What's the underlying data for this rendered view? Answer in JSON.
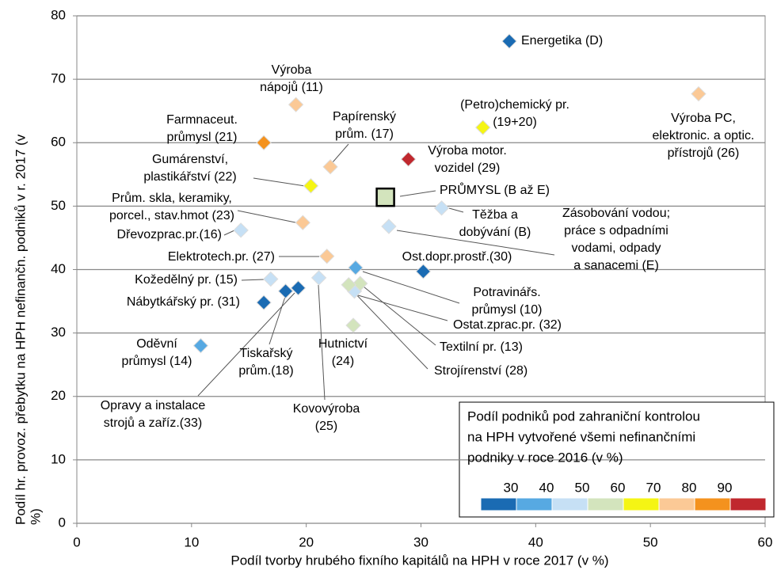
{
  "chart_data": {
    "type": "scatter",
    "x_label": "Podíl tvorby hrubého fixního kapitálů na HPH  v roce 2017 (v %)",
    "y_label": [
      "Podíl hr. provoz. přebytku na HPH nefinančn. podniků v r. 2017 (v",
      "%)"
    ],
    "xlim": [
      0,
      60
    ],
    "xticks": [
      0,
      10,
      20,
      30,
      40,
      50,
      60
    ],
    "ylim": [
      0,
      80
    ],
    "yticks": [
      0,
      10,
      20,
      30,
      40,
      50,
      60,
      70,
      80
    ],
    "grid": true,
    "points": [
      {
        "label": [
          "Energetika (D)"
        ],
        "x": 37.7,
        "y": 76.0,
        "color": "#1a6bb3"
      },
      {
        "label": [
          "Výroba PC,",
          "elektronic. a optic.",
          "přístrojů (26)"
        ],
        "x": 54.2,
        "y": 67.7,
        "color": "#fbc996"
      },
      {
        "label": [
          "(Petro)chemický pr.",
          "(19+20)"
        ],
        "x": 35.4,
        "y": 62.4,
        "color": "#f5f514"
      },
      {
        "label": [
          "Výroba",
          "nápojů (11)"
        ],
        "x": 19.1,
        "y": 66.0,
        "color": "#fbc996"
      },
      {
        "label": [
          "Farmnaceut.",
          "průmysl (21)"
        ],
        "x": 16.3,
        "y": 60.0,
        "color": "#f4921e"
      },
      {
        "label": [
          "Papírenský",
          "prům. (17)"
        ],
        "x": 22.1,
        "y": 56.2,
        "color": "#fbc996"
      },
      {
        "label": [
          "Výroba motor.",
          "vozidel (29)"
        ],
        "x": 28.9,
        "y": 57.4,
        "color": "#c0282e"
      },
      {
        "label": [
          "Gumárenství,",
          "plastikářství (22)"
        ],
        "x": 20.4,
        "y": 53.2,
        "color": "#f5f514"
      },
      {
        "label": [
          "PRŮMYSL (B až E)"
        ],
        "x": 26.9,
        "y": 51.4,
        "color": "#d3e4bd"
      },
      {
        "label": [
          "Těžba a",
          "dobývání (B)"
        ],
        "x": 31.8,
        "y": 49.7,
        "color": "#c6e0f5"
      },
      {
        "label": [
          "Prům. skla, keramiky,",
          "porcel., stav.hmot (23)"
        ],
        "x": 19.7,
        "y": 47.4,
        "color": "#fbc996"
      },
      {
        "label": [
          "Dřevozprac.pr.(16)"
        ],
        "x": 14.3,
        "y": 46.2,
        "color": "#c6e0f5"
      },
      {
        "label": [
          "Zásobování vodou;",
          "práce s odpadními",
          "vodami, odpady",
          "a sanacemi (E)"
        ],
        "x": 27.2,
        "y": 46.8,
        "color": "#c6e0f5"
      },
      {
        "label": [
          "Elektrotech.pr. (27)"
        ],
        "x": 21.8,
        "y": 42.1,
        "color": "#fbc996"
      },
      {
        "label": [
          "Ost.dopr.prostř.(30)"
        ],
        "x": 30.2,
        "y": 39.7,
        "color": "#1a6bb3"
      },
      {
        "label": [
          "Potravinářs.",
          "průmysl (10)"
        ],
        "x": 24.3,
        "y": 40.3,
        "color": "#57a9e2"
      },
      {
        "label": [
          "Kožedělný pr. (15)"
        ],
        "x": 16.9,
        "y": 38.5,
        "color": "#c6e0f5"
      },
      {
        "label": [
          "Kovovýroba",
          "(25)"
        ],
        "x": 21.1,
        "y": 38.7,
        "color": "#c6e0f5"
      },
      {
        "label": [
          "Nábytkářský pr. (31)"
        ],
        "x": 16.3,
        "y": 34.8,
        "color": "#1a6bb3"
      },
      {
        "label": [
          "Tiskařský",
          "prům.(18)"
        ],
        "x": 18.2,
        "y": 36.6,
        "color": "#1a6bb3"
      },
      {
        "label": [
          "Opravy a instalace",
          "strojů a zaříz.(33)"
        ],
        "x": 19.3,
        "y": 37.1,
        "color": "#1a6bb3"
      },
      {
        "label": [
          "Ostat.zprac.pr. (32)"
        ],
        "x": 24.2,
        "y": 36.6,
        "color": "#c6e0f5"
      },
      {
        "label": [
          "Textilní pr. (13)"
        ],
        "x": 24.7,
        "y": 37.8,
        "color": "#d3e4bd"
      },
      {
        "label": [
          "Strojírenství (28)"
        ],
        "x": 23.7,
        "y": 37.6,
        "color": "#d3e4bd"
      },
      {
        "label": [
          "Hutnictví",
          "(24)"
        ],
        "x": 24.1,
        "y": 31.2,
        "color": "#d3e4bd"
      },
      {
        "label": [
          "Oděvní",
          "průmysl (14)"
        ],
        "x": 10.8,
        "y": 28.0,
        "color": "#57a9e2"
      }
    ],
    "legend": {
      "title": [
        "Podíl podniků pod zahraniční kontrolou",
        "na HPH vytvořené všemi nefinančními",
        "podniky v roce 2016 (v %)"
      ],
      "ticks": [
        30,
        40,
        50,
        60,
        70,
        80,
        90
      ],
      "colors": [
        "#1a6bb3",
        "#57a9e2",
        "#c6e0f5",
        "#d3e4bd",
        "#f5f514",
        "#fbc996",
        "#f4921e",
        "#c0282e"
      ]
    }
  }
}
